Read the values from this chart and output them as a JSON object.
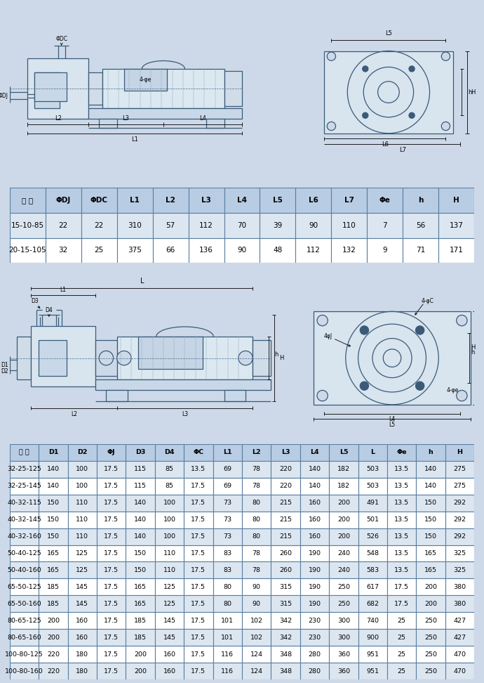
{
  "bg_color": "#cdd9e8",
  "table1_header": [
    "型 号",
    "ΦDJ",
    "ΦDC",
    "L1",
    "L2",
    "L3",
    "L4",
    "L5",
    "L6",
    "L7",
    "Φe",
    "h",
    "H"
  ],
  "table1_rows": [
    [
      "15-10-85",
      "22",
      "22",
      "310",
      "57",
      "112",
      "70",
      "39",
      "90",
      "110",
      "7",
      "56",
      "137"
    ],
    [
      "20-15-105",
      "32",
      "25",
      "375",
      "66",
      "136",
      "90",
      "48",
      "112",
      "132",
      "9",
      "71",
      "171"
    ]
  ],
  "table2_header": [
    "型 号",
    "D1",
    "D2",
    "ΦJ",
    "D3",
    "D4",
    "ΦC",
    "L1",
    "L2",
    "L3",
    "L4",
    "L5",
    "L",
    "Φe",
    "h",
    "H"
  ],
  "table2_rows": [
    [
      "32-25-125",
      "140",
      "100",
      "17.5",
      "115",
      "85",
      "13.5",
      "69",
      "78",
      "220",
      "140",
      "182",
      "503",
      "13.5",
      "140",
      "275"
    ],
    [
      "32-25-145",
      "140",
      "100",
      "17.5",
      "115",
      "85",
      "17.5",
      "69",
      "78",
      "220",
      "140",
      "182",
      "503",
      "13.5",
      "140",
      "275"
    ],
    [
      "40-32-115",
      "150",
      "110",
      "17.5",
      "140",
      "100",
      "17.5",
      "73",
      "80",
      "215",
      "160",
      "200",
      "491",
      "13.5",
      "150",
      "292"
    ],
    [
      "40-32-145",
      "150",
      "110",
      "17.5",
      "140",
      "100",
      "17.5",
      "73",
      "80",
      "215",
      "160",
      "200",
      "501",
      "13.5",
      "150",
      "292"
    ],
    [
      "40-32-160",
      "150",
      "110",
      "17.5",
      "140",
      "100",
      "17.5",
      "73",
      "80",
      "215",
      "160",
      "200",
      "526",
      "13.5",
      "150",
      "292"
    ],
    [
      "50-40-125",
      "165",
      "125",
      "17.5",
      "150",
      "110",
      "17.5",
      "83",
      "78",
      "260",
      "190",
      "240",
      "548",
      "13.5",
      "165",
      "325"
    ],
    [
      "50-40-160",
      "165",
      "125",
      "17.5",
      "150",
      "110",
      "17.5",
      "83",
      "78",
      "260",
      "190",
      "240",
      "583",
      "13.5",
      "165",
      "325"
    ],
    [
      "65-50-125",
      "185",
      "145",
      "17.5",
      "165",
      "125",
      "17.5",
      "80",
      "90",
      "315",
      "190",
      "250",
      "617",
      "17.5",
      "200",
      "380"
    ],
    [
      "65-50-160",
      "185",
      "145",
      "17.5",
      "165",
      "125",
      "17.5",
      "80",
      "90",
      "315",
      "190",
      "250",
      "682",
      "17.5",
      "200",
      "380"
    ],
    [
      "80-65-125",
      "200",
      "160",
      "17.5",
      "185",
      "145",
      "17.5",
      "101",
      "102",
      "342",
      "230",
      "300",
      "740",
      "25",
      "250",
      "427"
    ],
    [
      "80-65-160",
      "200",
      "160",
      "17.5",
      "185",
      "145",
      "17.5",
      "101",
      "102",
      "342",
      "230",
      "300",
      "900",
      "25",
      "250",
      "427"
    ],
    [
      "100-80-125",
      "220",
      "180",
      "17.5",
      "200",
      "160",
      "17.5",
      "116",
      "124",
      "348",
      "280",
      "360",
      "951",
      "25",
      "250",
      "470"
    ],
    [
      "100-80-160",
      "220",
      "180",
      "17.5",
      "200",
      "160",
      "17.5",
      "116",
      "124",
      "348",
      "280",
      "360",
      "951",
      "25",
      "250",
      "470"
    ]
  ],
  "header_bg": "#b8cce4",
  "row_bg_alt": "#dce6f1",
  "row_bg_white": "#ffffff",
  "border_color": "#5a7fa0",
  "lc": "#3a5a78",
  "lc_dim": "#000000"
}
